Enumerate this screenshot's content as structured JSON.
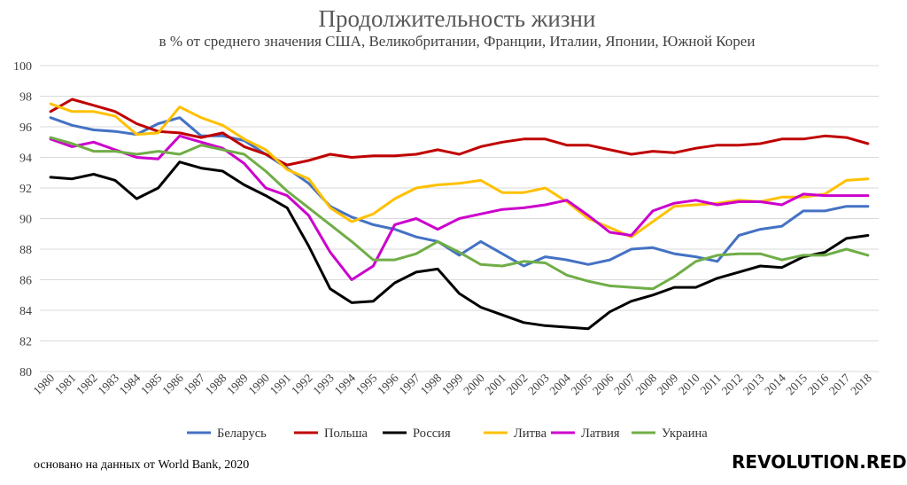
{
  "chart_data": {
    "type": "line",
    "title": "Продолжительность жизни",
    "subtitle": "в % от среднего значения США, Великобритании, Франции, Италии, Японии, Южной Кореи",
    "ylim": [
      80,
      100
    ],
    "yticks": [
      80,
      82,
      84,
      86,
      88,
      90,
      92,
      94,
      96,
      98,
      100
    ],
    "grid": true,
    "legend_position": "bottom",
    "x": [
      "1980",
      "1981",
      "1982",
      "1983",
      "1984",
      "1985",
      "1986",
      "1987",
      "1988",
      "1989",
      "1990",
      "1991",
      "1992",
      "1993",
      "1994",
      "1995",
      "1996",
      "1997",
      "1998",
      "1999",
      "2000",
      "2001",
      "2002",
      "2003",
      "2004",
      "2005",
      "2006",
      "2007",
      "2008",
      "2009",
      "2010",
      "2011",
      "2012",
      "2013",
      "2014",
      "2015",
      "2016",
      "2017",
      "2018"
    ],
    "series": [
      {
        "name": "Беларусь",
        "color": "#4472c4",
        "values": [
          96.6,
          96.1,
          95.8,
          95.7,
          95.5,
          96.2,
          96.6,
          95.4,
          95.4,
          95.1,
          94.2,
          93.3,
          92.3,
          90.8,
          90.1,
          89.6,
          89.3,
          88.8,
          88.5,
          87.6,
          88.5,
          87.7,
          86.9,
          87.5,
          87.3,
          87.0,
          87.3,
          88.0,
          88.1,
          87.7,
          87.5,
          87.2,
          88.9,
          89.3,
          89.5,
          90.5,
          90.5,
          90.8,
          90.8
        ]
      },
      {
        "name": "Польша",
        "color": "#c00000",
        "values": [
          97.0,
          97.8,
          97.4,
          97.0,
          96.2,
          95.7,
          95.6,
          95.3,
          95.6,
          94.7,
          94.2,
          93.5,
          93.8,
          94.2,
          94.0,
          94.1,
          94.1,
          94.2,
          94.5,
          94.2,
          94.7,
          95.0,
          95.2,
          95.2,
          94.8,
          94.8,
          94.5,
          94.2,
          94.4,
          94.3,
          94.6,
          94.8,
          94.8,
          94.9,
          95.2,
          95.2,
          95.4,
          95.3,
          94.9
        ]
      },
      {
        "name": "Россия",
        "color": "#000000",
        "values": [
          92.7,
          92.6,
          92.9,
          92.5,
          91.3,
          92.0,
          93.7,
          93.3,
          93.1,
          92.2,
          91.5,
          90.7,
          88.2,
          85.4,
          84.5,
          84.6,
          85.8,
          86.5,
          86.7,
          85.1,
          84.2,
          83.7,
          83.2,
          83.0,
          82.9,
          82.8,
          83.9,
          84.6,
          85.0,
          85.5,
          85.5,
          86.1,
          86.5,
          86.9,
          86.8,
          87.5,
          87.8,
          88.7,
          88.9
        ]
      },
      {
        "name": "Литва",
        "color": "#ffc000",
        "values": [
          97.5,
          97.0,
          97.0,
          96.7,
          95.5,
          95.6,
          97.3,
          96.6,
          96.1,
          95.2,
          94.5,
          93.2,
          92.6,
          90.7,
          89.8,
          90.3,
          91.3,
          92.0,
          92.2,
          92.3,
          92.5,
          91.7,
          91.7,
          92.0,
          91.1,
          90.0,
          89.4,
          88.8,
          89.8,
          90.8,
          90.9,
          91.0,
          91.2,
          91.1,
          91.4,
          91.4,
          91.6,
          92.5,
          92.6
        ]
      },
      {
        "name": "Латвия",
        "color": "#cc00cc",
        "values": [
          95.2,
          94.7,
          95.0,
          94.5,
          94.0,
          93.9,
          95.4,
          95.0,
          94.6,
          93.6,
          92.0,
          91.5,
          90.2,
          87.8,
          86.0,
          86.9,
          89.6,
          90.0,
          89.3,
          90.0,
          90.3,
          90.6,
          90.7,
          90.9,
          91.2,
          90.2,
          89.1,
          88.9,
          90.5,
          91.0,
          91.2,
          90.9,
          91.1,
          91.1,
          90.9,
          91.6,
          91.5,
          91.5,
          91.5
        ]
      },
      {
        "name": "Украина",
        "color": "#70ad47",
        "values": [
          95.3,
          94.9,
          94.4,
          94.4,
          94.2,
          94.4,
          94.2,
          94.8,
          94.5,
          94.2,
          93.1,
          91.8,
          90.7,
          89.6,
          88.5,
          87.3,
          87.3,
          87.7,
          88.5,
          87.8,
          87.0,
          86.9,
          87.2,
          87.1,
          86.3,
          85.9,
          85.6,
          85.5,
          85.4,
          86.2,
          87.2,
          87.6,
          87.7,
          87.7,
          87.3,
          87.6,
          87.6,
          88.0,
          87.6
        ]
      }
    ]
  },
  "source_note": "основано на данных от World Bank, 2020",
  "logo_text": "REVOLUTION.RED"
}
